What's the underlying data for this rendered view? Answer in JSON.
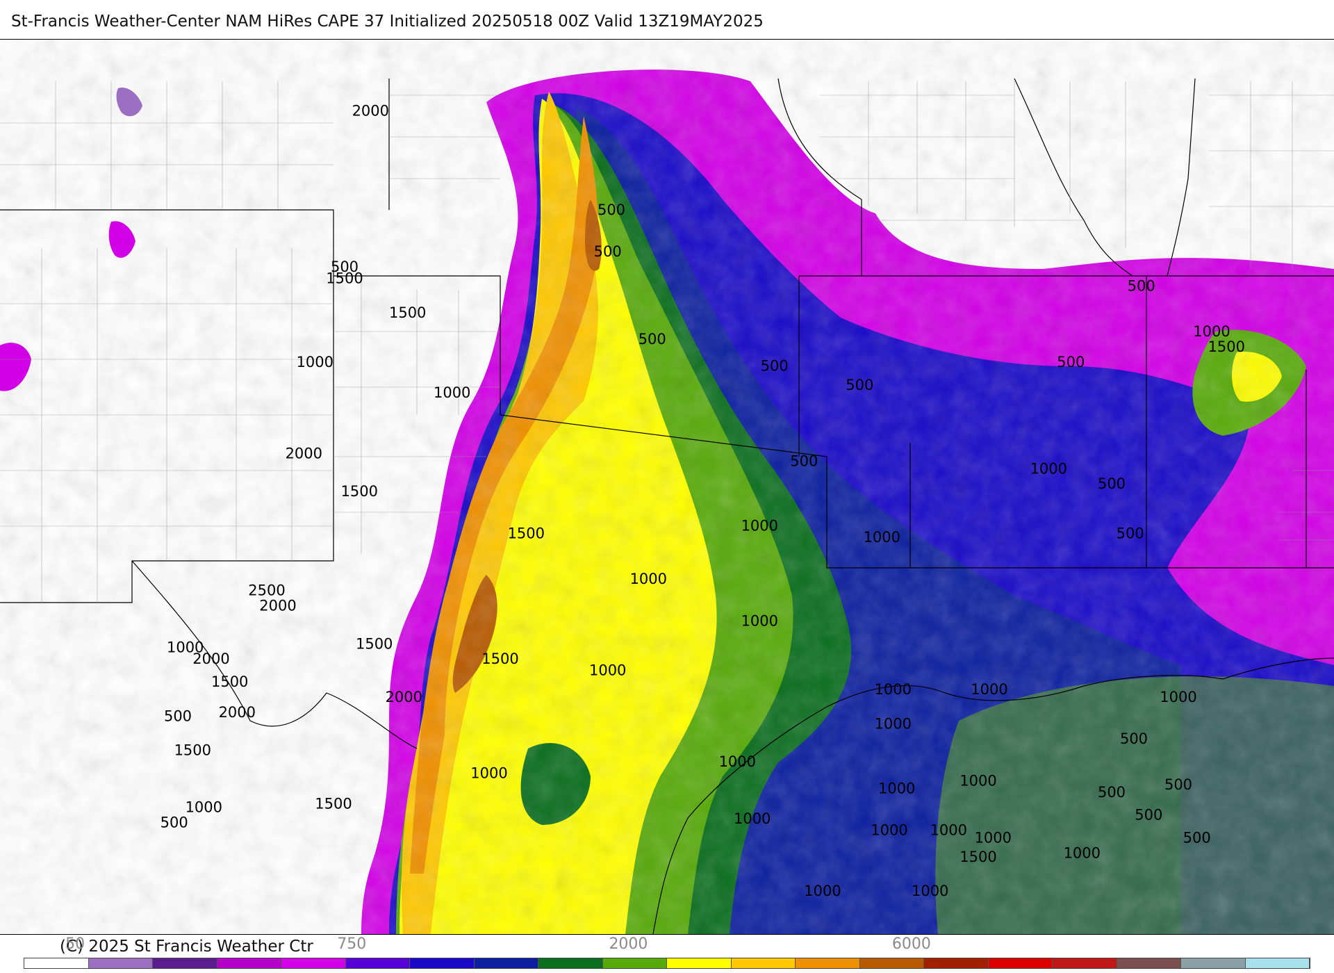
{
  "title": "St-Francis Weather-Center NAM HiRes CAPE  37 Initialized 20250518 00Z Valid 13Z19MAY2025",
  "copyright": "(C) 2025 St Francis Weather Ctr",
  "scale_labels": [
    {
      "text": "50",
      "pos": 0.04
    },
    {
      "text": "750",
      "pos": 0.255
    },
    {
      "text": "2000",
      "pos": 0.47
    },
    {
      "text": "6000",
      "pos": 0.69
    }
  ],
  "colorbar": [
    "#ffffff",
    "#9b6fc2",
    "#5a1d8f",
    "#b400c8",
    "#d200e6",
    "#5400d6",
    "#1a0ac8",
    "#0c1fa0",
    "#0a6e1e",
    "#58aa0a",
    "#ffff00",
    "#ffc800",
    "#f09000",
    "#b85a00",
    "#a02000",
    "#dd0000",
    "#c01818",
    "#7c5050",
    "#8ca0a8",
    "#a8e0ec"
  ],
  "contour_labels": [
    {
      "text": "2000",
      "lon": -103.0,
      "lat": 43.0
    },
    {
      "text": "500",
      "lon": -103.7,
      "lat": 38.9
    },
    {
      "text": "1500",
      "lon": -103.7,
      "lat": 38.6
    },
    {
      "text": "1500",
      "lon": -102.0,
      "lat": 37.7
    },
    {
      "text": "1000",
      "lon": -104.5,
      "lat": 36.4
    },
    {
      "text": "1000",
      "lon": -100.8,
      "lat": 35.6
    },
    {
      "text": "2000",
      "lon": -104.8,
      "lat": 34.0
    },
    {
      "text": "1500",
      "lon": -103.3,
      "lat": 33.0
    },
    {
      "text": "1500",
      "lon": -98.8,
      "lat": 31.9
    },
    {
      "text": "1000",
      "lon": -95.5,
      "lat": 30.7
    },
    {
      "text": "2500",
      "lon": -105.8,
      "lat": 30.4
    },
    {
      "text": "2000",
      "lon": -105.5,
      "lat": 30.0
    },
    {
      "text": "1500",
      "lon": -102.9,
      "lat": 29.0
    },
    {
      "text": "1000",
      "lon": -108.0,
      "lat": 28.9
    },
    {
      "text": "2000",
      "lon": -107.3,
      "lat": 28.6
    },
    {
      "text": "1500",
      "lon": -99.5,
      "lat": 28.6
    },
    {
      "text": "1000",
      "lon": -96.6,
      "lat": 28.3
    },
    {
      "text": "1500",
      "lon": -106.8,
      "lat": 28.0
    },
    {
      "text": "2000",
      "lon": -102.1,
      "lat": 27.6
    },
    {
      "text": "500",
      "lon": -108.2,
      "lat": 27.1
    },
    {
      "text": "2000",
      "lon": -106.6,
      "lat": 27.2
    },
    {
      "text": "1500",
      "lon": -107.8,
      "lat": 26.2
    },
    {
      "text": "1000",
      "lon": -99.8,
      "lat": 25.6
    },
    {
      "text": "1500",
      "lon": -104.0,
      "lat": 24.8
    },
    {
      "text": "1000",
      "lon": -107.5,
      "lat": 24.7
    },
    {
      "text": "500",
      "lon": -108.3,
      "lat": 24.3
    },
    {
      "text": "500",
      "lon": -96.5,
      "lat": 40.4
    },
    {
      "text": "500",
      "lon": -96.6,
      "lat": 39.3
    },
    {
      "text": "500",
      "lon": -95.4,
      "lat": 37.0
    },
    {
      "text": "500",
      "lon": -92.1,
      "lat": 36.3
    },
    {
      "text": "500",
      "lon": -89.8,
      "lat": 35.8
    },
    {
      "text": "500",
      "lon": -91.3,
      "lat": 33.8
    },
    {
      "text": "500",
      "lon": -82.2,
      "lat": 38.4
    },
    {
      "text": "1000",
      "lon": -80.3,
      "lat": 37.2
    },
    {
      "text": "1500",
      "lon": -79.9,
      "lat": 36.8
    },
    {
      "text": "500",
      "lon": -84.1,
      "lat": 36.4
    },
    {
      "text": "1000",
      "lon": -84.7,
      "lat": 33.6
    },
    {
      "text": "500",
      "lon": -83.0,
      "lat": 33.2
    },
    {
      "text": "500",
      "lon": -82.5,
      "lat": 31.9
    },
    {
      "text": "1000",
      "lon": -92.5,
      "lat": 32.1
    },
    {
      "text": "1000",
      "lon": -89.2,
      "lat": 31.8
    },
    {
      "text": "1000",
      "lon": -92.5,
      "lat": 29.6
    },
    {
      "text": "1000",
      "lon": -88.9,
      "lat": 27.8
    },
    {
      "text": "1000",
      "lon": -86.3,
      "lat": 27.8
    },
    {
      "text": "1000",
      "lon": -88.9,
      "lat": 26.9
    },
    {
      "text": "1000",
      "lon": -81.2,
      "lat": 27.6
    },
    {
      "text": "500",
      "lon": -82.4,
      "lat": 26.5
    },
    {
      "text": "1000",
      "lon": -93.1,
      "lat": 25.9
    },
    {
      "text": "1000",
      "lon": -88.8,
      "lat": 25.2
    },
    {
      "text": "1000",
      "lon": -86.6,
      "lat": 25.4
    },
    {
      "text": "500",
      "lon": -83.0,
      "lat": 25.1
    },
    {
      "text": "500",
      "lon": -81.2,
      "lat": 25.3
    },
    {
      "text": "1000",
      "lon": -92.7,
      "lat": 24.4
    },
    {
      "text": "1000",
      "lon": -89.0,
      "lat": 24.1
    },
    {
      "text": "1000",
      "lon": -87.4,
      "lat": 24.1
    },
    {
      "text": "1000",
      "lon": -86.2,
      "lat": 23.9
    },
    {
      "text": "500",
      "lon": -82.0,
      "lat": 24.5
    },
    {
      "text": "500",
      "lon": -80.7,
      "lat": 23.9
    },
    {
      "text": "1500",
      "lon": -86.6,
      "lat": 23.4
    },
    {
      "text": "1000",
      "lon": -83.8,
      "lat": 23.5
    },
    {
      "text": "1000",
      "lon": -90.8,
      "lat": 22.5
    },
    {
      "text": "1000",
      "lon": -87.9,
      "lat": 22.5
    }
  ]
}
